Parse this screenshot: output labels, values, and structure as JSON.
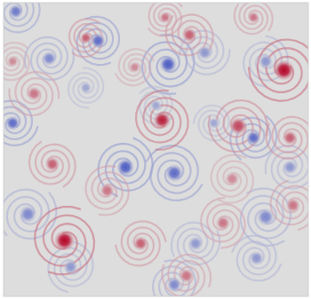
{
  "chart_data": {
    "type": "vortex_field",
    "x": [
      0.04,
      0.31,
      0.15,
      0.54,
      0.66,
      0.86,
      0.03,
      0.4,
      0.56,
      0.82,
      0.5,
      0.08,
      0.86,
      0.63,
      0.56,
      0.94,
      0.27,
      0.69,
      0.22,
      0.83,
      0.92,
      0.52,
      0.77,
      0.2,
      0.94,
      0.27,
      0.61,
      0.53,
      0.16,
      0.43,
      0.95,
      0.45,
      0.72,
      0.1,
      0.34,
      0.6,
      0.75,
      0.82,
      0.03
    ],
    "values": [
      0.97,
      0.87,
      0.81,
      0.79,
      0.83,
      0.8,
      0.59,
      0.44,
      0.42,
      0.54,
      0.65,
      0.28,
      0.27,
      0.18,
      0.04,
      0.44,
      0.71,
      0.59,
      0.1,
      0.13,
      0.77,
      0.6,
      0.58,
      0.19,
      0.54,
      0.88,
      0.89,
      0.95,
      0.45,
      0.78,
      0.31,
      0.18,
      0.25,
      0.69,
      0.36,
      0.07,
      0.4,
      0.95,
      0.8
    ],
    "size": [
      0.025,
      0.025,
      0.025,
      0.03,
      0.025,
      0.025,
      0.025,
      0.03,
      0.03,
      0.025,
      0.02,
      0.03,
      0.03,
      0.025,
      0.025,
      0.025,
      0.02,
      0.02,
      0.025,
      0.025,
      0.035,
      0.03,
      0.03,
      0.035,
      0.025,
      0.02,
      0.025,
      0.02,
      0.025,
      0.02,
      0.025,
      0.025,
      0.025,
      0.025,
      0.025,
      0.025,
      0.025,
      0.02,
      0.02
    ],
    "vorticity": [
      -0.7,
      -0.8,
      -0.6,
      -0.9,
      -0.5,
      -0.5,
      -0.8,
      -0.9,
      -0.8,
      -0.8,
      -0.4,
      -0.6,
      -0.6,
      -0.5,
      -0.6,
      -0.5,
      -0.4,
      -0.4,
      -0.5,
      -0.5,
      1.0,
      0.9,
      0.7,
      1.0,
      0.6,
      0.6,
      0.6,
      0.5,
      0.6,
      0.4,
      0.5,
      0.6,
      0.5,
      0.5,
      0.5,
      0.5,
      0.4,
      0.5,
      0.4
    ],
    "clim": [
      -1,
      1
    ],
    "color": "coolwarm",
    "xlim": [
      0,
      1
    ],
    "ylim": [
      0,
      1
    ],
    "tick_labels": false
  }
}
